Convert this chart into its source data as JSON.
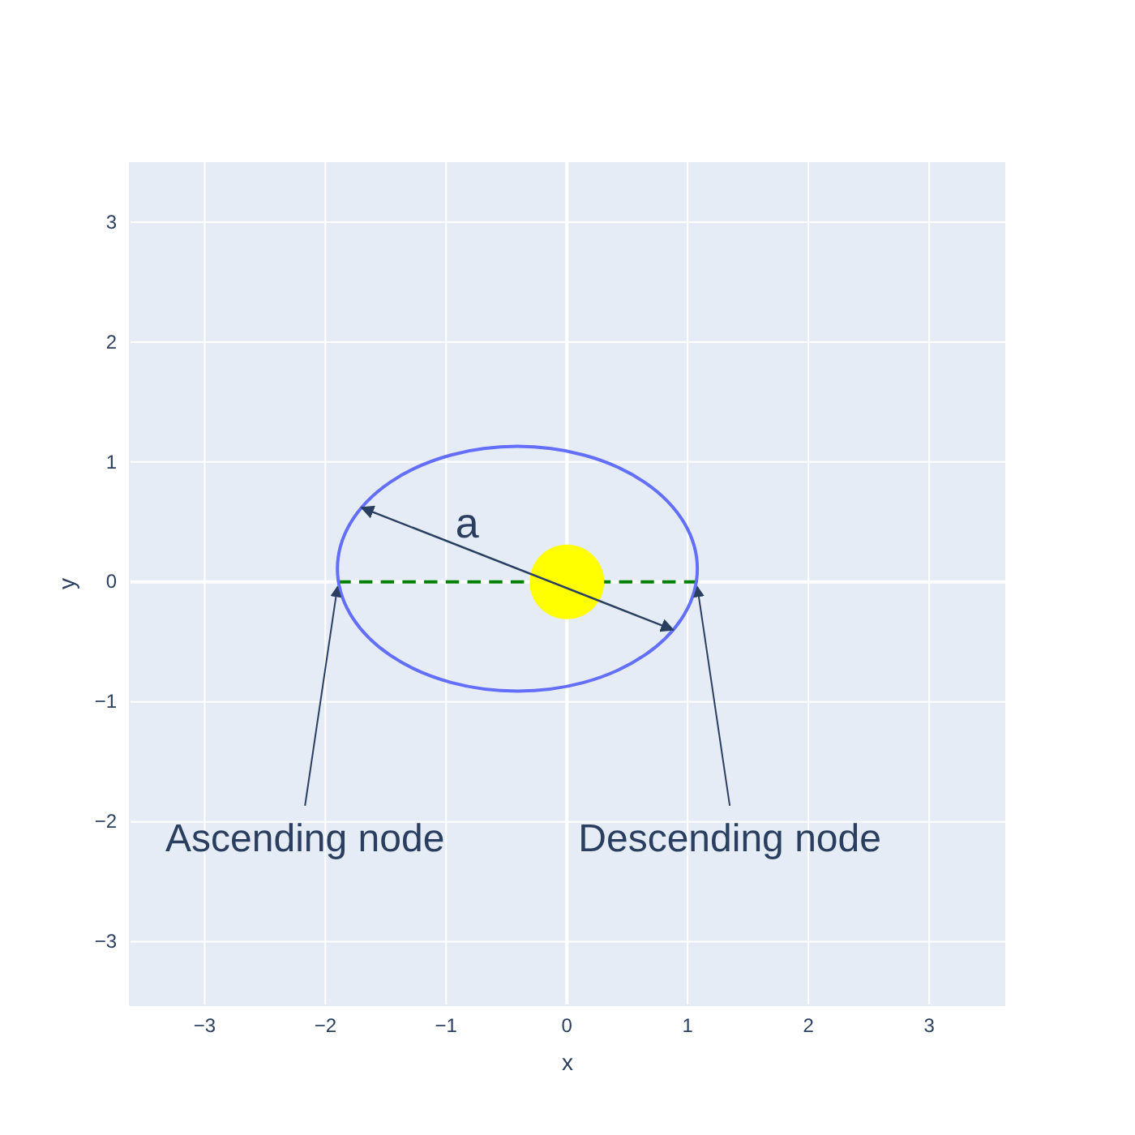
{
  "chart_data": {
    "type": "line",
    "xlabel": "x",
    "ylabel": "y",
    "xlim": [
      -3.62,
      3.63
    ],
    "ylim": [
      -3.53,
      3.5
    ],
    "xticks": [
      {
        "value": -3,
        "label": "−3"
      },
      {
        "value": -2,
        "label": "−2"
      },
      {
        "value": -1,
        "label": "−1"
      },
      0,
      1,
      2,
      3
    ],
    "yticks": [
      {
        "value": -3,
        "label": "−3"
      },
      {
        "value": -2,
        "label": "−2"
      },
      {
        "value": -1,
        "label": "−1"
      },
      0,
      1,
      2,
      3
    ],
    "grid": true,
    "series": [
      {
        "color": "#008000",
        "line_style": "dashed",
        "x": [
          -1.9,
          1.08
        ],
        "values": [
          0,
          0
        ]
      },
      {
        "type": "scatter",
        "marker": "circle",
        "color": "#ffff00",
        "x": [
          0
        ],
        "values": [
          0
        ]
      }
    ],
    "annotations": [
      "a",
      {
        "text": "Ascending node",
        "x": -1.9,
        "y": 0
      },
      {
        "text": "Descending node",
        "x": 1.08,
        "y": 0
      }
    ]
  }
}
